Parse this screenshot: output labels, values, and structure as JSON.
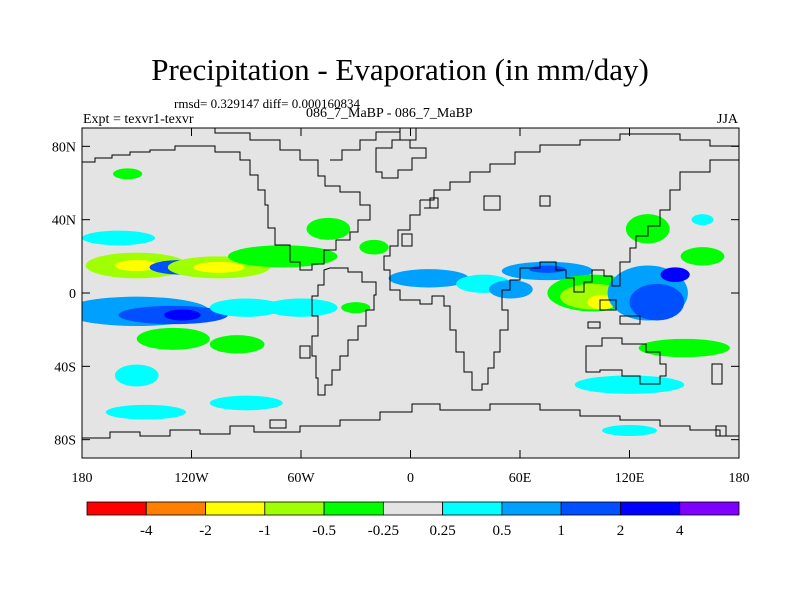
{
  "title": "Precipitation - Evaporation (in mm/day)",
  "stats_text": "rmsd= 0.329147 diff= 0.000160834",
  "expt_label": "Expt = texvr1-texvr",
  "case_label": "086_7_MaBP - 086_7_MaBP",
  "season": "JJA",
  "map": {
    "projection": "cylindrical-equidistant",
    "lon_range": [
      -180,
      180
    ],
    "lat_range": [
      -90,
      90
    ],
    "lat_ticks": [
      {
        "value": 80,
        "label": "80N"
      },
      {
        "value": 40,
        "label": "40N"
      },
      {
        "value": 0,
        "label": "0"
      },
      {
        "value": -40,
        "label": "40S"
      },
      {
        "value": -80,
        "label": "80S"
      }
    ],
    "lon_ticks": [
      {
        "value": -180,
        "label": "180"
      },
      {
        "value": -120,
        "label": "120W"
      },
      {
        "value": -60,
        "label": "60W"
      },
      {
        "value": 0,
        "label": "0"
      },
      {
        "value": 60,
        "label": "60E"
      },
      {
        "value": 120,
        "label": "120E"
      },
      {
        "value": 180,
        "label": "180"
      }
    ],
    "background_color": "#e4e4e4",
    "coastline_color": "#000000"
  },
  "colorbar": {
    "colors": [
      "#ff0000",
      "#ff8000",
      "#ffff00",
      "#a0ff00",
      "#00ff00",
      "#e4e4e4",
      "#00ffff",
      "#00a0ff",
      "#0050ff",
      "#0000ff",
      "#8000ff"
    ],
    "labels": [
      "-4",
      "-2",
      "-1",
      "-0.5",
      "-0.25",
      "0.25",
      "0.5",
      "1",
      "2",
      "4"
    ]
  },
  "anomalies": [
    {
      "lon": -150,
      "lat": 15,
      "rx": 28,
      "ry": 7,
      "value": -0.8
    },
    {
      "lon": -150,
      "lat": 15,
      "rx": 12,
      "ry": 3,
      "value": -1.2
    },
    {
      "lon": -125,
      "lat": 14,
      "rx": 18,
      "ry": 4,
      "value": 1.5
    },
    {
      "lon": -105,
      "lat": 14,
      "rx": 28,
      "ry": 6,
      "value": -0.8
    },
    {
      "lon": -105,
      "lat": 14,
      "rx": 14,
      "ry": 3,
      "value": -1.2
    },
    {
      "lon": -70,
      "lat": 20,
      "rx": 30,
      "ry": 6,
      "value": -0.4
    },
    {
      "lon": -160,
      "lat": 30,
      "rx": 20,
      "ry": 4,
      "value": 0.4
    },
    {
      "lon": -150,
      "lat": -10,
      "rx": 40,
      "ry": 8,
      "value": 0.6
    },
    {
      "lon": -130,
      "lat": -12,
      "rx": 30,
      "ry": 5,
      "value": 1.1
    },
    {
      "lon": -125,
      "lat": -12,
      "rx": 10,
      "ry": 3,
      "value": 2.5
    },
    {
      "lon": -90,
      "lat": -8,
      "rx": 20,
      "ry": 5,
      "value": 0.4
    },
    {
      "lon": -130,
      "lat": -25,
      "rx": 20,
      "ry": 6,
      "value": -0.35
    },
    {
      "lon": -95,
      "lat": -28,
      "rx": 15,
      "ry": 5,
      "value": -0.35
    },
    {
      "lon": -150,
      "lat": -45,
      "rx": 12,
      "ry": 6,
      "value": 0.35
    },
    {
      "lon": -145,
      "lat": -65,
      "rx": 22,
      "ry": 4,
      "value": 0.35
    },
    {
      "lon": -90,
      "lat": -60,
      "rx": 20,
      "ry": 4,
      "value": 0.35
    },
    {
      "lon": -60,
      "lat": -8,
      "rx": 20,
      "ry": 5,
      "value": 0.4
    },
    {
      "lon": -30,
      "lat": -8,
      "rx": 8,
      "ry": 3,
      "value": -0.35
    },
    {
      "lon": -45,
      "lat": 35,
      "rx": 12,
      "ry": 6,
      "value": -0.35
    },
    {
      "lon": -20,
      "lat": 25,
      "rx": 8,
      "ry": 4,
      "value": -0.35
    },
    {
      "lon": -155,
      "lat": 65,
      "rx": 8,
      "ry": 3,
      "value": -0.3
    },
    {
      "lon": 10,
      "lat": 8,
      "rx": 22,
      "ry": 5,
      "value": 0.6
    },
    {
      "lon": 40,
      "lat": 5,
      "rx": 15,
      "ry": 5,
      "value": 0.4
    },
    {
      "lon": 55,
      "lat": 2,
      "rx": 12,
      "ry": 5,
      "value": 0.8
    },
    {
      "lon": 75,
      "lat": 12,
      "rx": 25,
      "ry": 5,
      "value": 0.6
    },
    {
      "lon": 75,
      "lat": 13,
      "rx": 10,
      "ry": 2,
      "value": 1.2
    },
    {
      "lon": 100,
      "lat": 0,
      "rx": 25,
      "ry": 10,
      "value": -0.35
    },
    {
      "lon": 100,
      "lat": -2,
      "rx": 18,
      "ry": 7,
      "value": -0.7
    },
    {
      "lon": 105,
      "lat": -5,
      "rx": 8,
      "ry": 4,
      "value": -1.5
    },
    {
      "lon": 130,
      "lat": 0,
      "rx": 22,
      "ry": 15,
      "value": 0.6
    },
    {
      "lon": 135,
      "lat": -5,
      "rx": 15,
      "ry": 10,
      "value": 1.1
    },
    {
      "lon": 145,
      "lat": 10,
      "rx": 8,
      "ry": 4,
      "value": 2.5
    },
    {
      "lon": 130,
      "lat": 35,
      "rx": 12,
      "ry": 8,
      "value": -0.35
    },
    {
      "lon": 160,
      "lat": 20,
      "rx": 12,
      "ry": 5,
      "value": -0.35
    },
    {
      "lon": 150,
      "lat": -30,
      "rx": 25,
      "ry": 5,
      "value": -0.35
    },
    {
      "lon": 120,
      "lat": -50,
      "rx": 30,
      "ry": 5,
      "value": 0.35
    },
    {
      "lon": 120,
      "lat": -75,
      "rx": 15,
      "ry": 3,
      "value": 0.35
    },
    {
      "lon": 160,
      "lat": 40,
      "rx": 6,
      "ry": 3,
      "value": 0.3
    }
  ]
}
